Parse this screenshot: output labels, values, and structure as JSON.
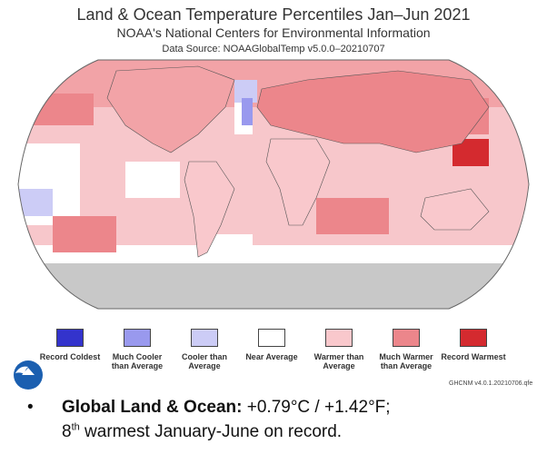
{
  "header": {
    "title": "Land & Ocean Temperature Percentiles Jan–Jun 2021",
    "subtitle": "NOAA's National Centers for Environmental Information",
    "source": "Data Source: NOAAGlobalTemp v5.0.0–20210707"
  },
  "map": {
    "projection": "robinson",
    "background_color": "#ffffff"
  },
  "legend": {
    "items": [
      {
        "label": "Record Coldest",
        "color": "#3333cc"
      },
      {
        "label": "Much Cooler than Average",
        "color": "#9999ee"
      },
      {
        "label": "Cooler than Average",
        "color": "#ccccf6"
      },
      {
        "label": "Near Average",
        "color": "#ffffff"
      },
      {
        "label": "Warmer than Average",
        "color": "#f9c8cc"
      },
      {
        "label": "Much Warmer than Average",
        "color": "#ec868b"
      },
      {
        "label": "Record Warmest",
        "color": "#d42a2f"
      }
    ]
  },
  "version_note": "GHCNM v4.0.1.20210706.qfe",
  "logo": {
    "icon": "noaa-logo-icon"
  },
  "bullet": {
    "marker": "•",
    "label": "Global Land & Ocean:",
    "value": " +0.79°C / +1.42°F;",
    "rank_number": "8",
    "rank_suffix": "th",
    "rank_text": " warmest January-June on record."
  }
}
